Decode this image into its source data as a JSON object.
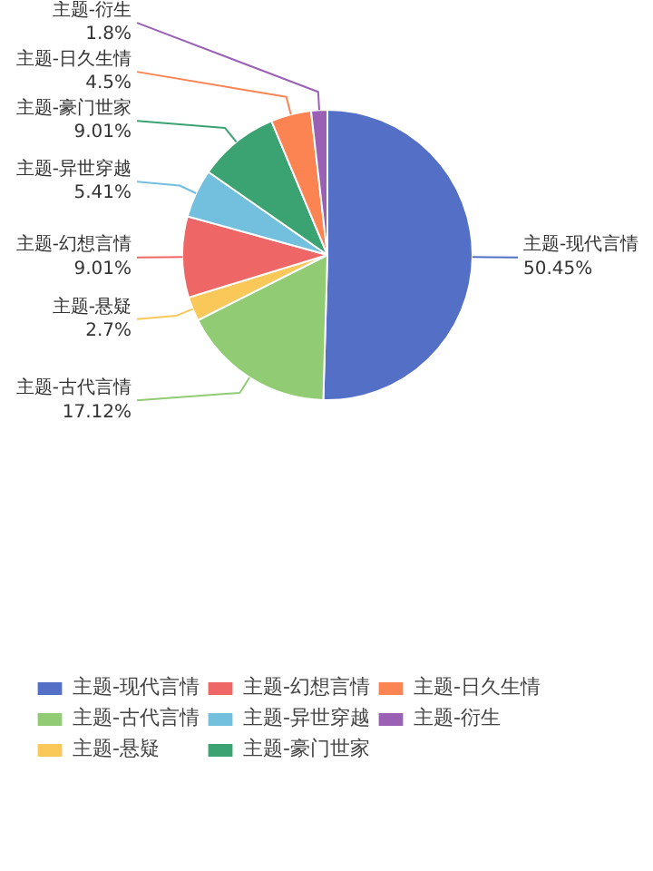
{
  "chart_data": {
    "type": "pie",
    "categories": [
      "主题-现代言情",
      "主题-古代言情",
      "主题-悬疑",
      "主题-幻想言情",
      "主题-异世穿越",
      "主题-豪门世家",
      "主题-日久生情",
      "主题-衍生"
    ],
    "values": [
      50.45,
      17.12,
      2.7,
      9.01,
      5.41,
      9.01,
      4.5,
      1.8
    ],
    "colors": [
      "#5470c6",
      "#91cc75",
      "#fac858",
      "#ee6666",
      "#73c0de",
      "#3ba272",
      "#fc8452",
      "#9a60b4"
    ],
    "value_labels": [
      "50.45%",
      "17.12%",
      "2.7%",
      "9.01%",
      "5.41%",
      "9.01%",
      "4.5%",
      "1.8%"
    ],
    "legend": "bottom"
  }
}
